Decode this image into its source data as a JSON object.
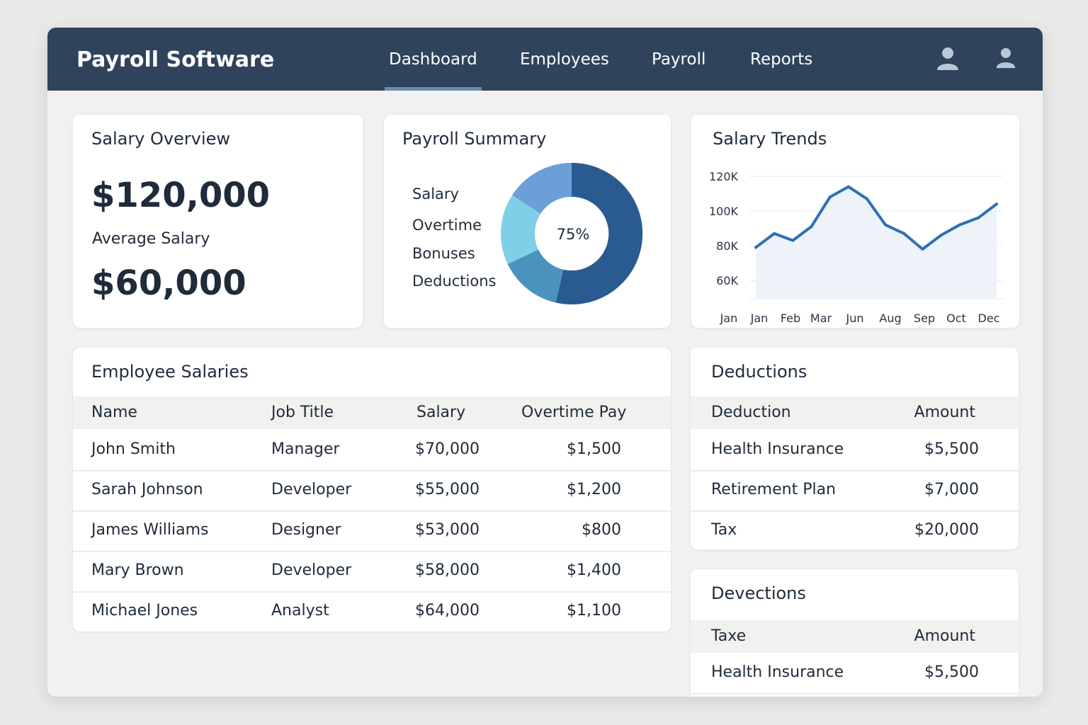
{
  "app": {
    "title": "Payroll Software"
  },
  "nav": {
    "items": [
      "Dashboard",
      "Employees",
      "Payroll",
      "Reports"
    ],
    "active": "Dashboard"
  },
  "icons": {
    "user": "user-icon",
    "account": "account-icon"
  },
  "colors": {
    "header": "#2f435c",
    "donut_dark": "#2a5b90",
    "donut_mid_light": "#6a9fd8",
    "donut_cyan": "#7fcfe8",
    "donut_teal": "#4b93bd",
    "line": "#2f6fb8"
  },
  "salary_overview": {
    "title": "Salary Overview",
    "primary_value": "$120,000",
    "caption": "Average Salary",
    "secondary_value": "$60,000"
  },
  "payroll_summary": {
    "title": "Payroll Summary",
    "legend": [
      "Salary",
      "Overtime",
      "Bonuses",
      "Deductions"
    ],
    "center_label": "75%"
  },
  "chart_data": {
    "type": "line",
    "title": "Salary Trends",
    "x_labels": [
      "Jan",
      "Jan",
      "Feb",
      "Mar",
      "Jun",
      "Aug",
      "Sep",
      "Oct",
      "Dec"
    ],
    "y_ticks": [
      "120K",
      "100K",
      "80K",
      "60K"
    ],
    "ylim": [
      50,
      120
    ],
    "series": [
      {
        "name": "Salary",
        "values": [
          79,
          87,
          83,
          91,
          108,
          114,
          107,
          92,
          87,
          78,
          86,
          92,
          96,
          104
        ]
      }
    ],
    "grid": true,
    "area_fill": true
  },
  "employee_salaries": {
    "title": "Employee Salaries",
    "columns": [
      "Name",
      "Job Title",
      "Salary",
      "Overtime Pay"
    ],
    "rows": [
      [
        "John Smith",
        "Manager",
        "$70,000",
        "$1,500"
      ],
      [
        "Sarah Johnson",
        "Developer",
        "$55,000",
        "$1,200"
      ],
      [
        "James Williams",
        "Designer",
        "$53,000",
        "$800"
      ],
      [
        "Mary Brown",
        "Developer",
        "$58,000",
        "$1,400"
      ],
      [
        "Michael Jones",
        "Analyst",
        "$64,000",
        "$1,100"
      ]
    ]
  },
  "deductions": {
    "title": "Deductions",
    "columns": [
      "Deduction",
      "Amount"
    ],
    "rows": [
      [
        "Health Insurance",
        "$5,500"
      ],
      [
        "Retirement Plan",
        "$7,000"
      ],
      [
        "Tax",
        "$20,000"
      ]
    ]
  },
  "devections": {
    "title": "Devections",
    "columns": [
      "Taxe",
      "Amount"
    ],
    "rows": [
      [
        "Health Insurance",
        "$5,500"
      ]
    ]
  }
}
